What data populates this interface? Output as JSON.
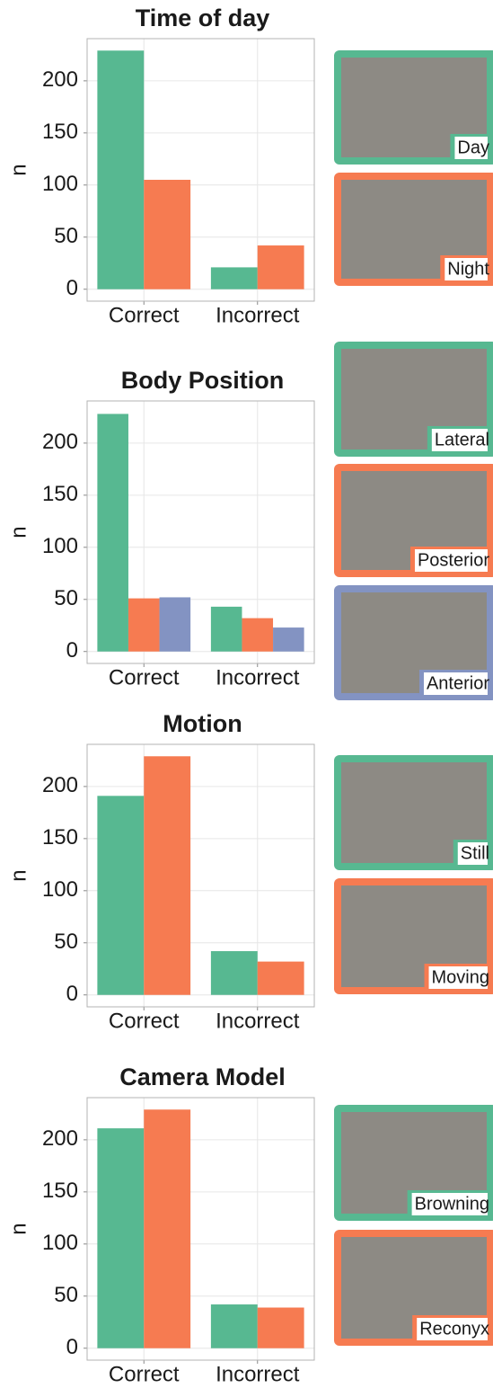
{
  "chart_data": [
    {
      "type": "bar",
      "title": "Time of day",
      "y_label": "n",
      "categories": [
        "Correct",
        "Incorrect"
      ],
      "series": [
        {
          "name": "Day",
          "color": "#57b891",
          "values": [
            229,
            21
          ]
        },
        {
          "name": "Night",
          "color": "#f67b51",
          "values": [
            105,
            42
          ]
        }
      ],
      "ylim": [
        -11.45,
        240.45
      ],
      "yticks": [
        0,
        50,
        100,
        150,
        200
      ],
      "grid": true
    },
    {
      "type": "bar",
      "title": "Body Position",
      "y_label": "n",
      "categories": [
        "Correct",
        "Incorrect"
      ],
      "series": [
        {
          "name": "Lateral",
          "color": "#57b891",
          "values": [
            228,
            43
          ]
        },
        {
          "name": "Posterior",
          "color": "#f67b51",
          "values": [
            51,
            32
          ]
        },
        {
          "name": "Anterior",
          "color": "#8393c2",
          "values": [
            52,
            23
          ]
        }
      ],
      "ylim": [
        -11.45,
        240.45
      ],
      "yticks": [
        0,
        50,
        100,
        150,
        200
      ],
      "grid": true
    },
    {
      "type": "bar",
      "title": "Motion",
      "y_label": "n",
      "categories": [
        "Correct",
        "Incorrect"
      ],
      "series": [
        {
          "name": "Still",
          "color": "#57b891",
          "values": [
            191,
            42
          ]
        },
        {
          "name": "Moving",
          "color": "#f67b51",
          "values": [
            229,
            32
          ]
        }
      ],
      "ylim": [
        -11.45,
        240.45
      ],
      "yticks": [
        0,
        50,
        100,
        150,
        200
      ],
      "grid": true
    },
    {
      "type": "bar",
      "title": "Camera Model",
      "y_label": "n",
      "categories": [
        "Correct",
        "Incorrect"
      ],
      "series": [
        {
          "name": "Browning",
          "color": "#57b891",
          "values": [
            211,
            42
          ]
        },
        {
          "name": "Reconyx",
          "color": "#f67b51",
          "values": [
            229,
            39
          ]
        }
      ],
      "ylim": [
        -11.45,
        240.45
      ],
      "yticks": [
        0,
        50,
        100,
        150,
        200
      ],
      "grid": true
    }
  ]
}
